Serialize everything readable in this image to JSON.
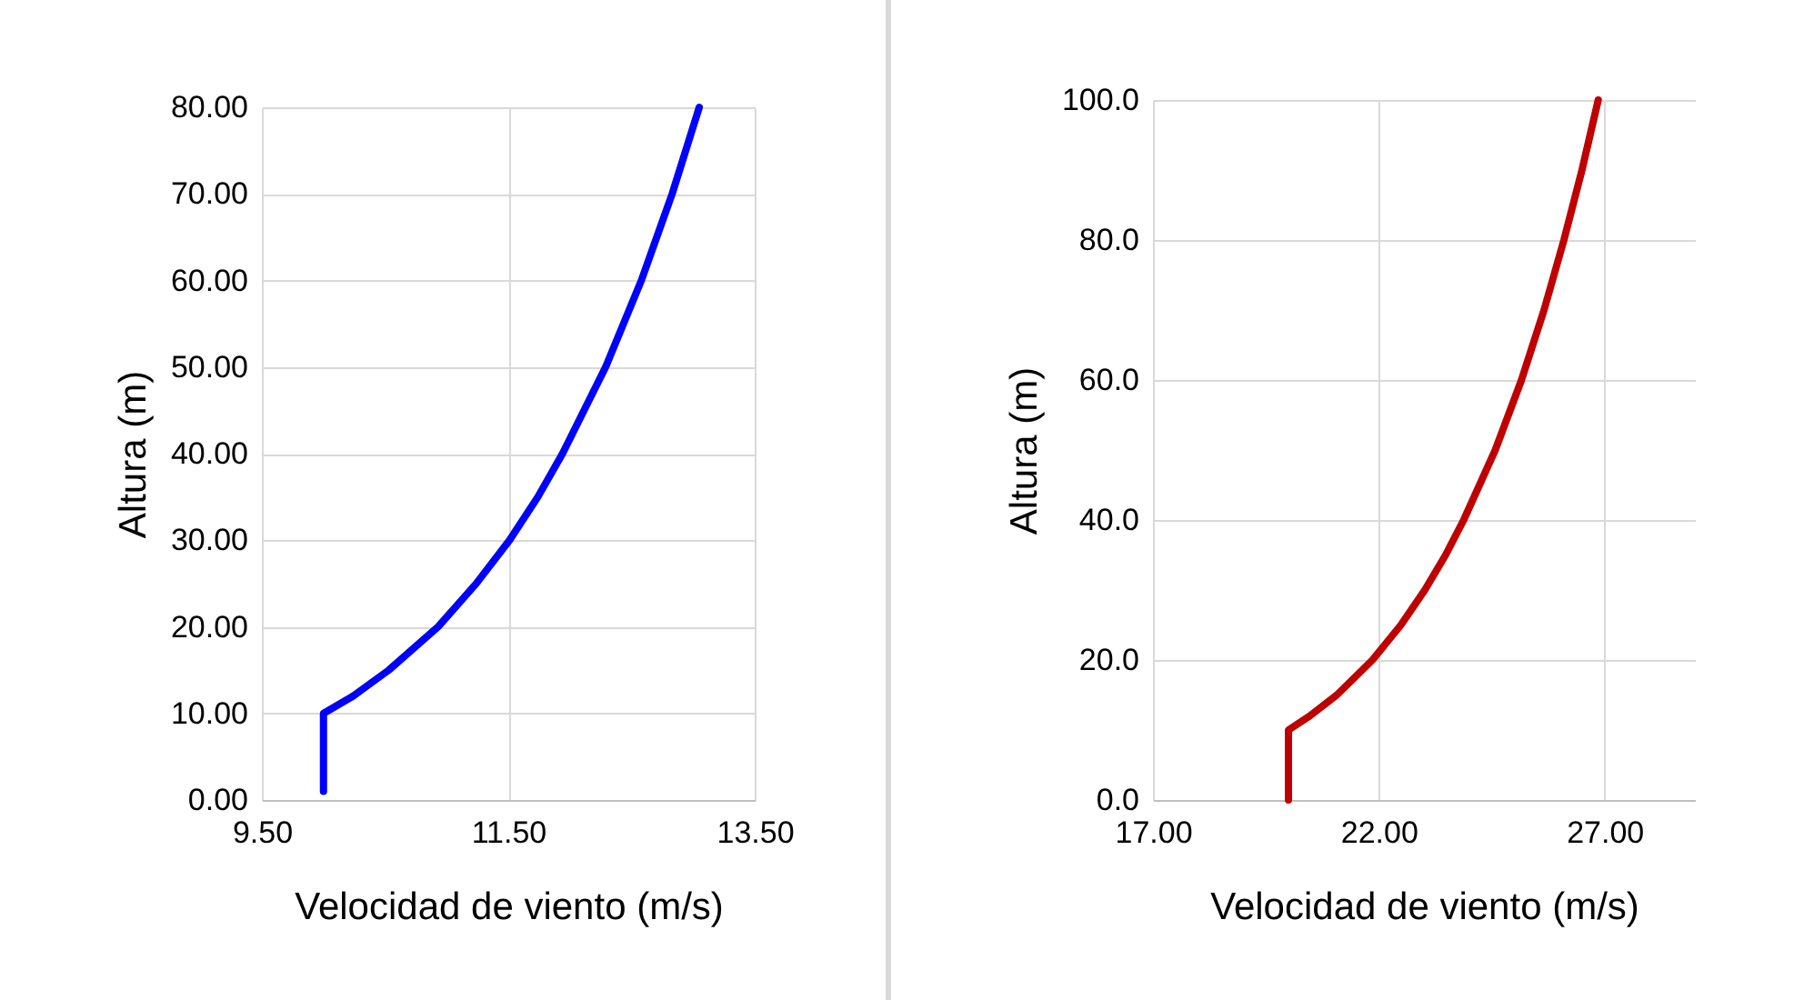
{
  "chart_data": [
    {
      "type": "line",
      "xlabel": "Velocidad de viento (m/s)",
      "ylabel": "Altura (m)",
      "xlim": [
        9.5,
        13.5
      ],
      "xticks": [
        {
          "value": 9.5,
          "label": "9.50"
        },
        {
          "value": 11.5,
          "label": "11.50"
        },
        {
          "value": 13.5,
          "label": "13.50"
        }
      ],
      "ylim": [
        0,
        80
      ],
      "yticks": [
        {
          "value": 0,
          "label": "0.00"
        },
        {
          "value": 10,
          "label": "10.00"
        },
        {
          "value": 20,
          "label": "20.00"
        },
        {
          "value": 30,
          "label": "30.00"
        },
        {
          "value": 40,
          "label": "40.00"
        },
        {
          "value": 50,
          "label": "50.00"
        },
        {
          "value": 60,
          "label": "60.00"
        },
        {
          "value": 70,
          "label": "70.00"
        },
        {
          "value": 80,
          "label": "80.00"
        }
      ],
      "grid": true,
      "marker": "none",
      "line_style": "solid",
      "series": [
        {
          "color": "#0000ff",
          "x": [
            10,
            10,
            10.24,
            10.53,
            10.93,
            11.24,
            11.51,
            11.74,
            11.94,
            12.29,
            12.58,
            12.83,
            13.05
          ],
          "values": [
            1,
            10,
            12,
            15,
            20,
            25,
            30,
            35,
            40,
            50,
            60,
            70,
            80
          ]
        }
      ]
    },
    {
      "type": "line",
      "xlabel": "Velocidad de viento (m/s)",
      "ylabel": "Altura (m)",
      "xlim": [
        17,
        29
      ],
      "xticks": [
        {
          "value": 17,
          "label": "17.00"
        },
        {
          "value": 22,
          "label": "22.00"
        },
        {
          "value": 27,
          "label": "27.00"
        }
      ],
      "ylim": [
        0,
        100
      ],
      "yticks": [
        {
          "value": 0,
          "label": "0.0"
        },
        {
          "value": 20,
          "label": "20.0"
        },
        {
          "value": 40,
          "label": "40.0"
        },
        {
          "value": 60,
          "label": "60.0"
        },
        {
          "value": 80,
          "label": "80.0"
        },
        {
          "value": 100,
          "label": "100.0"
        }
      ],
      "grid": true,
      "marker": "none",
      "line_style": "solid",
      "series": [
        {
          "color": "#c00000",
          "x": [
            20,
            20,
            20.47,
            21.07,
            21.86,
            22.49,
            23.02,
            23.48,
            23.88,
            24.58,
            25.16,
            25.66,
            26.1,
            26.5,
            26.86
          ],
          "values": [
            0,
            10,
            12,
            15,
            20,
            25,
            30,
            35,
            40,
            50,
            60,
            70,
            80,
            90,
            100
          ]
        }
      ]
    }
  ]
}
